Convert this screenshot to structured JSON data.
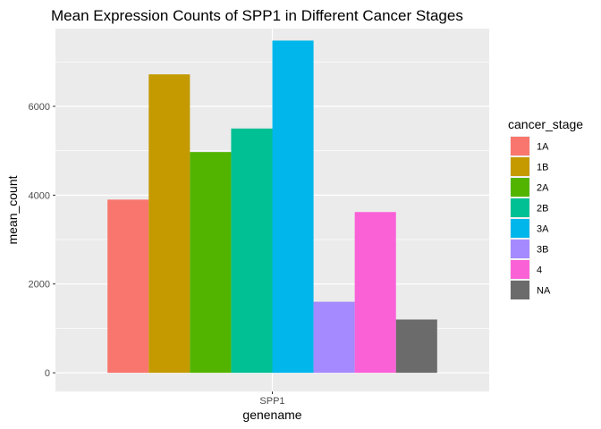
{
  "chart_data": {
    "type": "bar",
    "title": "Mean Expression Counts of SPP1 in Different Cancer Stages",
    "xlabel": "genename",
    "ylabel": "mean_count",
    "categories": [
      "SPP1"
    ],
    "yticks": [
      0,
      2000,
      4000,
      6000
    ],
    "ylim": [
      -420,
      7750
    ],
    "grid": true,
    "legend": {
      "title": "cancer_stage",
      "position": "right"
    },
    "series": [
      {
        "name": "1A",
        "color": "#F8766D",
        "values": [
          3900
        ]
      },
      {
        "name": "1B",
        "color": "#C49A00",
        "values": [
          6720
        ]
      },
      {
        "name": "2A",
        "color": "#53B400",
        "values": [
          4970
        ]
      },
      {
        "name": "2B",
        "color": "#00C094",
        "values": [
          5500
        ]
      },
      {
        "name": "3A",
        "color": "#00B6EB",
        "values": [
          7480
        ]
      },
      {
        "name": "3B",
        "color": "#A58AFF",
        "values": [
          1600
        ]
      },
      {
        "name": "4",
        "color": "#FB61D7",
        "values": [
          3620
        ]
      },
      {
        "name": "NA",
        "color": "#6B6B6B",
        "values": [
          1200
        ]
      }
    ]
  }
}
